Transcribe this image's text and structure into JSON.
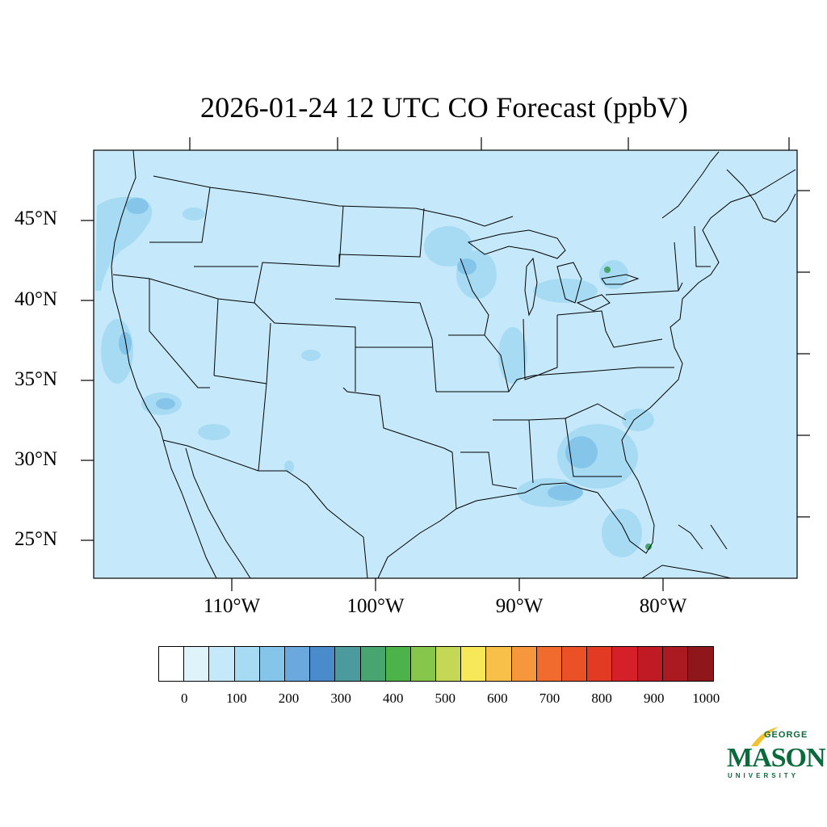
{
  "title": "2026-01-24 12 UTC CO Forecast (ppbV)",
  "lat_labels": [
    "45°N",
    "40°N",
    "35°N",
    "30°N",
    "25°N"
  ],
  "lon_labels": [
    "110°W",
    "100°W",
    "90°W",
    "80°W"
  ],
  "colorbar": {
    "colors": [
      "#ffffff",
      "#dff3fb",
      "#c5e9fa",
      "#a6dbf3",
      "#86c5ea",
      "#6aa8dd",
      "#4a8bcb",
      "#4b9a9e",
      "#49a56f",
      "#4cb34a",
      "#86c64a",
      "#c4d856",
      "#f7e85a",
      "#f8bf49",
      "#f7973d",
      "#f26b2e",
      "#eb5127",
      "#e23a23",
      "#d5202a",
      "#c01a25",
      "#aa1a20",
      "#8f161b"
    ],
    "tick_labels": [
      "0",
      "100",
      "200",
      "300",
      "400",
      "500",
      "600",
      "700",
      "800",
      "900",
      "1000"
    ]
  },
  "logo": {
    "george": "GEORGE",
    "mason": "MASON",
    "university": "UNIVERSITY",
    "color": "#0b6a3b",
    "accent": "#f2c230"
  },
  "map": {
    "ocean_color": "#c5e9fa",
    "land_color": "#c5e9fa",
    "plume_color": "#a6dbf3",
    "plume_dark": "#86c5ea",
    "hotspot_color": "#49a56f"
  }
}
